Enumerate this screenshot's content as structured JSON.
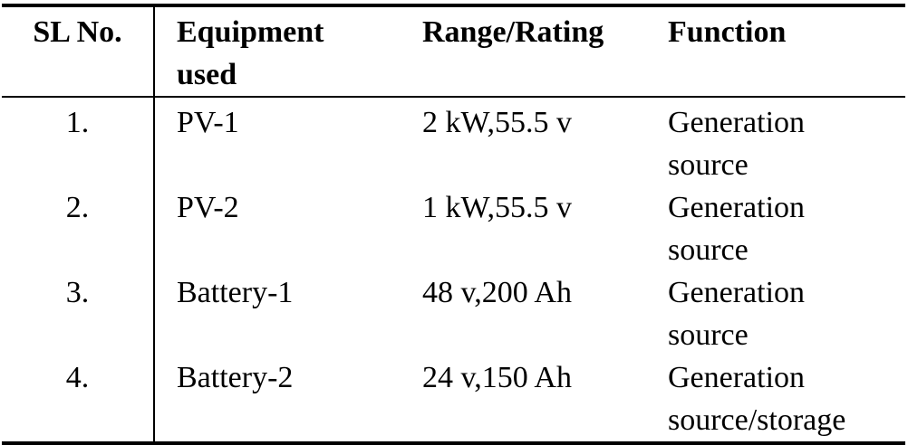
{
  "table": {
    "headers": {
      "sl_no": "SL No.",
      "equipment_line1": "Equipment",
      "equipment_line2": "used",
      "range_rating": "Range/Rating",
      "function": "Function"
    },
    "rows": [
      {
        "sl_no": "1.",
        "equipment": "PV-1",
        "range_rating": "2 kW,55.5 v",
        "function_line1": "Generation",
        "function_line2": "source"
      },
      {
        "sl_no": "2.",
        "equipment": "PV-2",
        "range_rating": "1 kW,55.5 v",
        "function_line1": "Generation",
        "function_line2": "source"
      },
      {
        "sl_no": "3.",
        "equipment": "Battery-1",
        "range_rating": "48 v,200 Ah",
        "function_line1": "Generation",
        "function_line2": "source"
      },
      {
        "sl_no": "4.",
        "equipment": "Battery-2",
        "range_rating": "24 v,150 Ah",
        "function_line1": "Generation",
        "function_line2": "source/storage"
      }
    ]
  }
}
